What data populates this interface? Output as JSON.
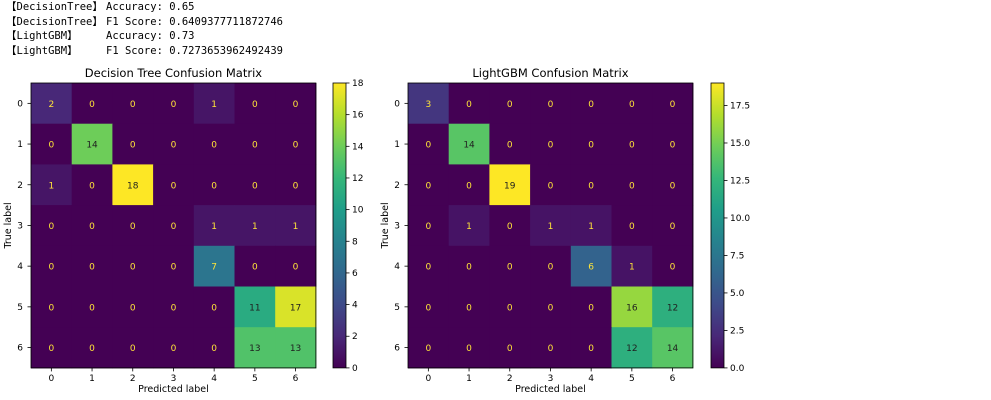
{
  "log_lines": [
    {
      "tag": "【DecisionTree】",
      "text": "Accuracy: 0.65"
    },
    {
      "tag": "【DecisionTree】",
      "text": "F1 Score: 0.6409377711872746"
    },
    {
      "tag": "【LightGBM】",
      "text": "Accuracy: 0.73"
    },
    {
      "tag": "【LightGBM】",
      "text": "F1 Score: 0.7273653962492439"
    }
  ],
  "chart_data": [
    {
      "type": "heatmap",
      "title": "Decision Tree Confusion Matrix",
      "xlabel": "Predicted label",
      "ylabel": "True label",
      "x_ticks": [
        "0",
        "1",
        "2",
        "3",
        "4",
        "5",
        "6"
      ],
      "y_ticks": [
        "0",
        "1",
        "2",
        "3",
        "4",
        "5",
        "6"
      ],
      "matrix": [
        [
          2,
          0,
          0,
          0,
          1,
          0,
          0
        ],
        [
          0,
          14,
          0,
          0,
          0,
          0,
          0
        ],
        [
          1,
          0,
          18,
          0,
          0,
          0,
          0
        ],
        [
          0,
          0,
          0,
          0,
          1,
          1,
          1
        ],
        [
          0,
          0,
          0,
          0,
          7,
          0,
          0
        ],
        [
          0,
          0,
          0,
          0,
          0,
          11,
          17
        ],
        [
          0,
          0,
          0,
          0,
          0,
          13,
          13
        ]
      ],
      "colormap": "viridis",
      "vmin": 0,
      "vmax": 18,
      "colorbar_ticks": [
        0,
        2,
        4,
        6,
        8,
        10,
        12,
        14,
        16,
        18
      ],
      "colorbar_labels": [
        "0",
        "2",
        "4",
        "6",
        "8",
        "10",
        "12",
        "14",
        "16",
        "18"
      ]
    },
    {
      "type": "heatmap",
      "title": "LightGBM Confusion Matrix",
      "xlabel": "Predicted label",
      "ylabel": "True label",
      "x_ticks": [
        "0",
        "1",
        "2",
        "3",
        "4",
        "5",
        "6"
      ],
      "y_ticks": [
        "0",
        "1",
        "2",
        "3",
        "4",
        "5",
        "6"
      ],
      "matrix": [
        [
          3,
          0,
          0,
          0,
          0,
          0,
          0
        ],
        [
          0,
          14,
          0,
          0,
          0,
          0,
          0
        ],
        [
          0,
          0,
          19,
          0,
          0,
          0,
          0
        ],
        [
          0,
          1,
          0,
          1,
          1,
          0,
          0
        ],
        [
          0,
          0,
          0,
          0,
          6,
          1,
          0
        ],
        [
          0,
          0,
          0,
          0,
          0,
          16,
          12
        ],
        [
          0,
          0,
          0,
          0,
          0,
          12,
          14
        ]
      ],
      "colormap": "viridis",
      "vmin": 0,
      "vmax": 19,
      "colorbar_ticks": [
        0,
        2.5,
        5,
        7.5,
        10,
        12.5,
        15,
        17.5
      ],
      "colorbar_labels": [
        "0.0",
        "2.5",
        "5.0",
        "7.5",
        "10.0",
        "12.5",
        "15.0",
        "17.5"
      ]
    }
  ],
  "colors": {
    "text_light": "#ffe438",
    "text_dark": "#1f1f1f",
    "frame": "#000000"
  }
}
